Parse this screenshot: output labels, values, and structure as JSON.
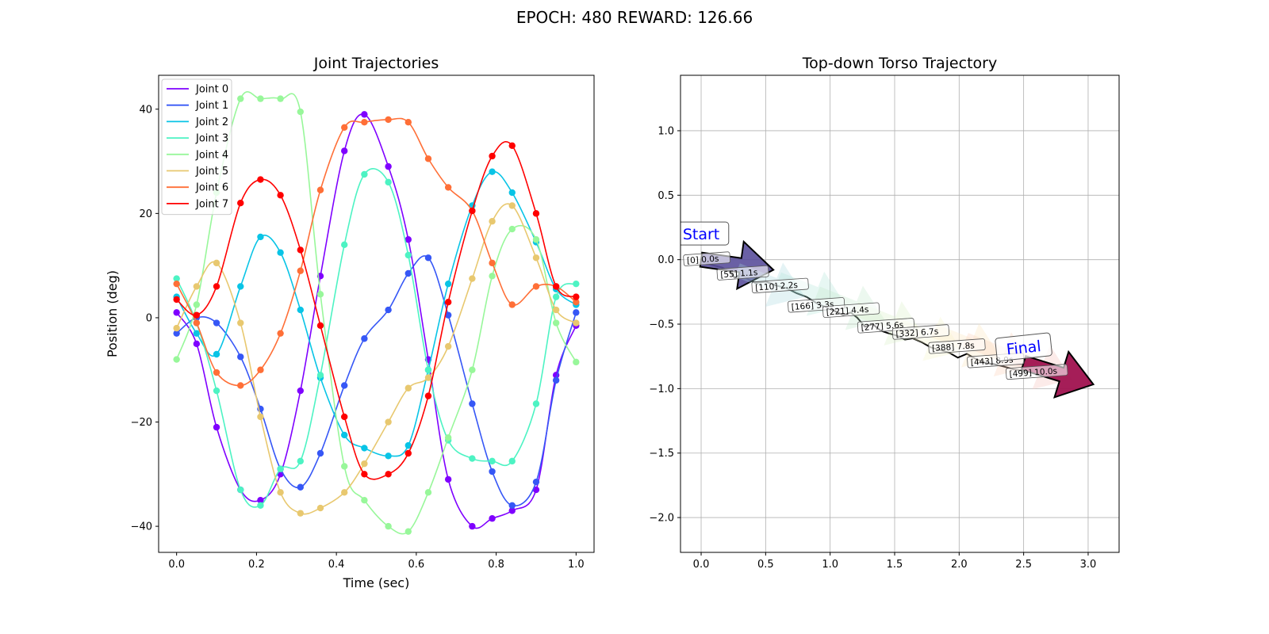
{
  "figure": {
    "suptitle": "EPOCH: 480 REWARD: 126.66"
  },
  "chart_data": [
    {
      "type": "line",
      "title": "Joint Trajectories",
      "xlabel": "Time (sec)",
      "ylabel": "Position (deg)",
      "xlim": [
        -0.045,
        1.045
      ],
      "ylim": [
        -45,
        46.5
      ],
      "xticks": [
        0.0,
        0.2,
        0.4,
        0.6,
        0.8,
        1.0
      ],
      "yticks": [
        -40,
        -20,
        0,
        20,
        40
      ],
      "grid": false,
      "legend": "top-left",
      "x": [
        0.0,
        0.05,
        0.1,
        0.16,
        0.21,
        0.26,
        0.31,
        0.36,
        0.42,
        0.47,
        0.53,
        0.58,
        0.63,
        0.68,
        0.74,
        0.79,
        0.84,
        0.9,
        0.95,
        1.0
      ],
      "series": [
        {
          "name": "Joint 0",
          "color": "#7f00ff",
          "values": [
            1,
            -5,
            -21,
            -33,
            -35,
            -30,
            -14,
            8,
            32,
            39,
            29,
            15,
            -8,
            -31,
            -40,
            -38.5,
            -37,
            -33,
            -11,
            -1.5
          ]
        },
        {
          "name": "Joint 1",
          "color": "#3657f6",
          "values": [
            -3,
            0,
            -1,
            -7.5,
            -17.5,
            -29,
            -32.5,
            -26,
            -13,
            -4,
            1.5,
            8.5,
            11.5,
            0.5,
            -16.5,
            -29.5,
            -36,
            -31.5,
            -12,
            1
          ]
        },
        {
          "name": "Joint 2",
          "color": "#09c4e6",
          "values": [
            4,
            -3,
            -7,
            6,
            15.5,
            12.5,
            1.5,
            -11.5,
            -22.5,
            -25,
            -26.5,
            -24.5,
            -10,
            6.5,
            21.5,
            28,
            24,
            14.5,
            5.5,
            2.5
          ]
        },
        {
          "name": "Joint 3",
          "color": "#4df3c3",
          "values": [
            7.5,
            -1,
            -14,
            -33,
            -36,
            -29,
            -27.5,
            -11,
            14,
            27.5,
            26,
            12,
            -10,
            -23.5,
            -27,
            -27.5,
            -27.5,
            -16.5,
            4,
            6.5
          ]
        },
        {
          "name": "Joint 4",
          "color": "#98f79a",
          "values": [
            -8,
            2.5,
            24,
            42,
            42,
            42,
            39.5,
            4.5,
            -28.5,
            -35,
            -40,
            -41,
            -33.5,
            -23,
            -10,
            8,
            17,
            15,
            -1,
            -8.5
          ]
        },
        {
          "name": "Joint 5",
          "color": "#e8c86f",
          "values": [
            -2,
            6,
            10.5,
            -1,
            -19,
            -33.5,
            -37.5,
            -36.5,
            -33.5,
            -28,
            -20,
            -13.5,
            -11.5,
            -5.5,
            7.5,
            18.5,
            21.5,
            11.5,
            1.5,
            -1
          ]
        },
        {
          "name": "Joint 6",
          "color": "#ff6f37",
          "values": [
            6.5,
            -1,
            -10.5,
            -13,
            -10,
            -3,
            9,
            24.5,
            36.5,
            37.5,
            38,
            37.5,
            30.5,
            25,
            20.5,
            10.5,
            2.5,
            6,
            6,
            3
          ]
        },
        {
          "name": "Joint 7",
          "color": "#ff0000",
          "values": [
            3.5,
            0.5,
            6,
            22,
            26.5,
            23.5,
            13,
            -1.5,
            -19,
            -30,
            -30,
            -26,
            -15,
            3,
            20.5,
            31,
            33,
            20,
            6,
            4
          ]
        }
      ]
    },
    {
      "type": "line",
      "title": "Top-down Torso Trajectory",
      "xlabel": "",
      "ylabel": "",
      "xlim": [
        -0.16,
        3.24
      ],
      "ylim": [
        -2.27,
        1.43
      ],
      "xticks": [
        0.0,
        0.5,
        1.0,
        1.5,
        2.0,
        2.5,
        3.0
      ],
      "yticks": [
        -2.0,
        -1.5,
        -1.0,
        -0.5,
        0.0,
        0.5,
        1.0
      ],
      "grid": true,
      "path": {
        "x": [
          0.0,
          0.08,
          0.16,
          0.22,
          0.26,
          0.31,
          0.36,
          0.42,
          0.5,
          0.58,
          0.66,
          0.74,
          0.82,
          0.9,
          0.97,
          1.04,
          1.1,
          1.16,
          1.21,
          1.27,
          1.33,
          1.39,
          1.45,
          1.52,
          1.58,
          1.64,
          1.71,
          1.78,
          1.85,
          1.92,
          1.99,
          2.06,
          2.13,
          2.2,
          2.27,
          2.35,
          2.42,
          2.49,
          2.55,
          2.6
        ],
        "y": [
          0.0,
          -0.04,
          -0.06,
          -0.09,
          -0.14,
          -0.11,
          -0.15,
          -0.18,
          -0.17,
          -0.2,
          -0.22,
          -0.26,
          -0.29,
          -0.34,
          -0.37,
          -0.4,
          -0.43,
          -0.41,
          -0.45,
          -0.52,
          -0.5,
          -0.55,
          -0.57,
          -0.59,
          -0.62,
          -0.61,
          -0.64,
          -0.68,
          -0.7,
          -0.72,
          -0.76,
          -0.73,
          -0.77,
          -0.8,
          -0.81,
          -0.83,
          -0.85,
          -0.86,
          -0.86,
          -0.87
        ]
      },
      "arrows": [
        {
          "x": 0.0,
          "y": 0.0,
          "color": "#5a4f9b",
          "opacity": 0.9
        },
        {
          "x": 0.28,
          "y": -0.08,
          "color": "#a6d7df",
          "opacity": 0.3
        },
        {
          "x": 0.6,
          "y": -0.15,
          "color": "#b0e5d6",
          "opacity": 0.3
        },
        {
          "x": 0.9,
          "y": -0.26,
          "color": "#bfe9cb",
          "opacity": 0.3
        },
        {
          "x": 1.2,
          "y": -0.38,
          "color": "#d7efc4",
          "opacity": 0.3
        },
        {
          "x": 1.5,
          "y": -0.5,
          "color": "#f6f7cd",
          "opacity": 0.35
        },
        {
          "x": 1.8,
          "y": -0.55,
          "color": "#fde9c2",
          "opacity": 0.35
        },
        {
          "x": 2.05,
          "y": -0.62,
          "color": "#fcd5be",
          "opacity": 0.35
        },
        {
          "x": 2.35,
          "y": -0.72,
          "color": "#f7c5c0",
          "opacity": 0.35
        },
        {
          "x": 2.5,
          "y": -0.8,
          "color": "#a0124f",
          "opacity": 0.95
        }
      ],
      "labels": [
        {
          "text": "[0] 0.0s",
          "x": 0.0,
          "y": 0.0
        },
        {
          "text": "[55] 1.1s",
          "x": 0.26,
          "y": -0.11
        },
        {
          "text": "[110] 2.2s",
          "x": 0.53,
          "y": -0.21
        },
        {
          "text": "[166] 3.3s",
          "x": 0.81,
          "y": -0.36
        },
        {
          "text": "[221] 4.4s",
          "x": 1.08,
          "y": -0.4
        },
        {
          "text": "[277] 5.6s",
          "x": 1.35,
          "y": -0.52
        },
        {
          "text": "[332] 6.7s",
          "x": 1.62,
          "y": -0.57
        },
        {
          "text": "[388] 7.8s",
          "x": 1.9,
          "y": -0.68
        },
        {
          "text": "[443] 8.9s",
          "x": 2.2,
          "y": -0.79
        },
        {
          "text": "[499] 10.0s",
          "x": 2.5,
          "y": -0.88
        }
      ],
      "annotations": [
        {
          "text": "Start",
          "x": 0.0,
          "y": 0.2
        },
        {
          "text": "Final",
          "x": 2.5,
          "y": -0.68
        }
      ]
    }
  ]
}
